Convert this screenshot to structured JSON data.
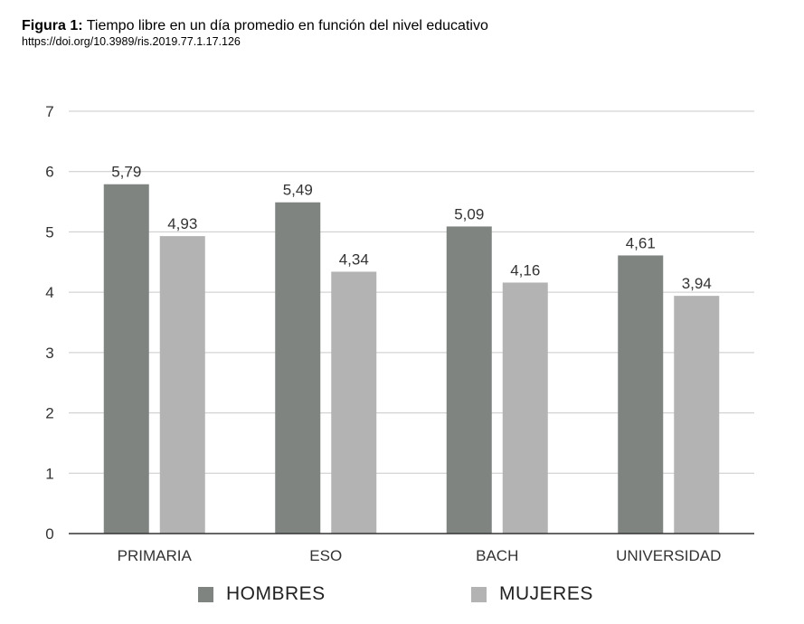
{
  "figure": {
    "label": "Figura 1:",
    "title": "Tiempo libre en un día promedio en función del nivel educativo",
    "doi": "https://doi.org/10.3989/ris.2019.77.1.17.126"
  },
  "chart_data": {
    "type": "bar",
    "categories": [
      "PRIMARIA",
      "ESO",
      "BACH",
      "UNIVERSIDAD"
    ],
    "series": [
      {
        "name": "HOMBRES",
        "values": [
          5.79,
          5.49,
          5.09,
          4.61
        ],
        "labels": [
          "5,79",
          "5,49",
          "5,09",
          "4,61"
        ],
        "color": "#7f8480"
      },
      {
        "name": "MUJERES",
        "values": [
          4.93,
          4.34,
          4.16,
          3.94
        ],
        "labels": [
          "4,93",
          "4,34",
          "4,16",
          "3,94"
        ],
        "color": "#b3b3b3"
      }
    ],
    "ylim": [
      0,
      7
    ],
    "yticks": [
      0,
      1,
      2,
      3,
      4,
      5,
      6,
      7
    ],
    "grid": true,
    "legend_position": "bottom",
    "xlabel": "",
    "ylabel": ""
  }
}
